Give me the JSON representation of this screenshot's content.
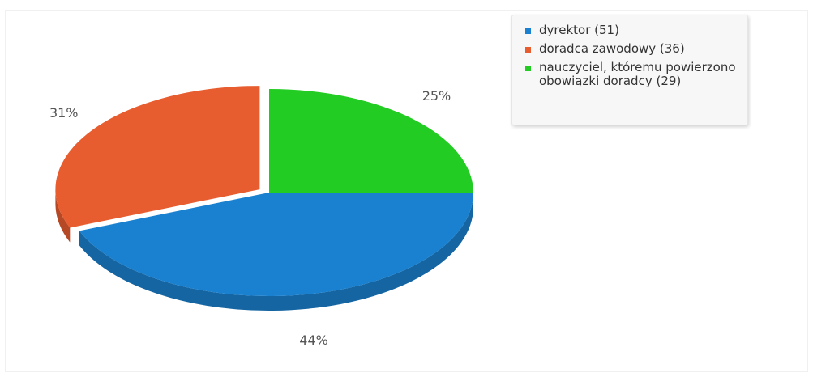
{
  "chart_data": {
    "type": "pie",
    "categories": [
      "dyrektor",
      "doradca zawodowy",
      "nauczyciel, któremu powierzono obowiązki doradcy"
    ],
    "values": [
      51,
      36,
      29
    ],
    "percent_labels": [
      "44%",
      "31%",
      "25%"
    ],
    "legend_labels": [
      "dyrektor (51)",
      "doradca zawodowy (36)",
      "nauczyciel, któremu powierzono obowiązki doradcy (29)"
    ],
    "colors": [
      "#1a81d0",
      "#e85d2f",
      "#22cc22"
    ],
    "legend_position": "top-right",
    "style": "3d",
    "exploded_slice": "doradca zawodowy"
  }
}
